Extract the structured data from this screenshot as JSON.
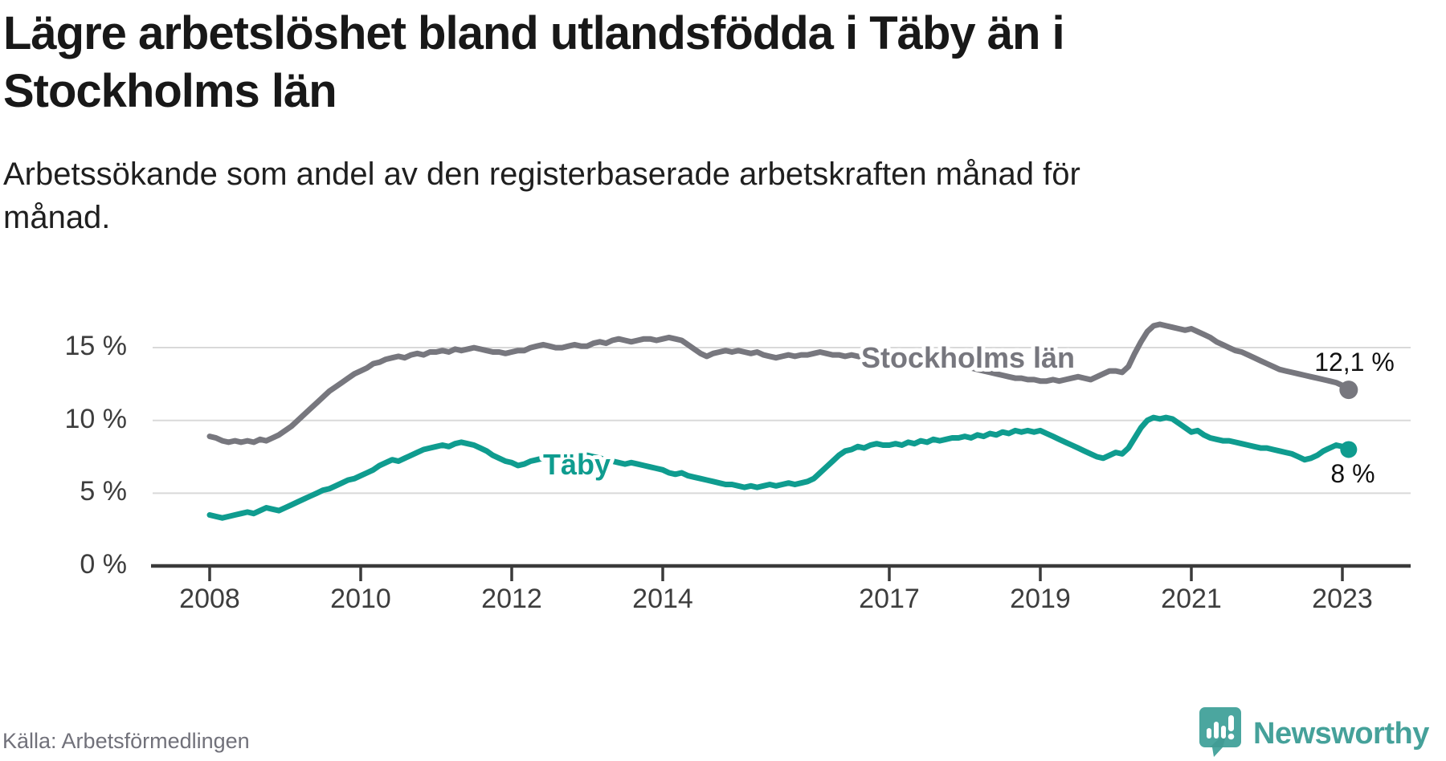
{
  "header": {
    "title_line1": "Lägre arbetslöshet bland utlandsfödda i Täby än i",
    "title_line2": "Stockholms län",
    "subtitle_line1": "Arbetssökande som andel av den registerbaserade arbetskraften månad för",
    "subtitle_line2": "månad."
  },
  "footer": {
    "source": "Källa: Arbetsförmedlingen",
    "brand": "Newsworthy"
  },
  "colors": {
    "stockholm_line": "#77777e",
    "taby_line": "#0f9c8f",
    "axis": "#3a3a3a",
    "gridline": "#d9d9d9",
    "end_label_text": "#111111",
    "brand_teal": "#45a19a",
    "halo": "#ffffff"
  },
  "chart_data": {
    "type": "line",
    "title": "Lägre arbetslöshet bland utlandsfödda i Täby än i Stockholms län",
    "subtitle": "Arbetssökande som andel av den registerbaserade arbetskraften månad för månad.",
    "unit": "%",
    "frequency": "monthly",
    "start": "2008-01",
    "end": "2023-02",
    "ylim": [
      0,
      17.5
    ],
    "grid": "horizontal",
    "legend_position": "inline-labels",
    "y_ticks": [
      {
        "value": 0,
        "label": "0 %"
      },
      {
        "value": 5,
        "label": "5 %"
      },
      {
        "value": 10,
        "label": "10 %"
      },
      {
        "value": 15,
        "label": "15 %"
      }
    ],
    "x_ticks": [
      {
        "year": 2008,
        "label": "2008"
      },
      {
        "year": 2010,
        "label": "2010"
      },
      {
        "year": 2012,
        "label": "2012"
      },
      {
        "year": 2014,
        "label": "2014"
      },
      {
        "year": 2017,
        "label": "2017"
      },
      {
        "year": 2019,
        "label": "2019"
      },
      {
        "year": 2021,
        "label": "2021"
      },
      {
        "year": 2023,
        "label": "2023"
      }
    ],
    "series": [
      {
        "name": "Stockholms län",
        "color": "#77777e",
        "end_label": "12,1 %",
        "end_value": 12.1,
        "values": [
          8.9,
          8.8,
          8.6,
          8.5,
          8.6,
          8.5,
          8.6,
          8.5,
          8.7,
          8.6,
          8.8,
          9.0,
          9.3,
          9.6,
          10.0,
          10.4,
          10.8,
          11.2,
          11.6,
          12.0,
          12.3,
          12.6,
          12.9,
          13.2,
          13.4,
          13.6,
          13.9,
          14.0,
          14.2,
          14.3,
          14.4,
          14.3,
          14.5,
          14.6,
          14.5,
          14.7,
          14.7,
          14.8,
          14.7,
          14.9,
          14.8,
          14.9,
          15.0,
          14.9,
          14.8,
          14.7,
          14.7,
          14.6,
          14.7,
          14.8,
          14.8,
          15.0,
          15.1,
          15.2,
          15.1,
          15.0,
          15.0,
          15.1,
          15.2,
          15.1,
          15.1,
          15.3,
          15.4,
          15.3,
          15.5,
          15.6,
          15.5,
          15.4,
          15.5,
          15.6,
          15.6,
          15.5,
          15.6,
          15.7,
          15.6,
          15.5,
          15.2,
          14.9,
          14.6,
          14.4,
          14.6,
          14.7,
          14.8,
          14.7,
          14.8,
          14.7,
          14.6,
          14.7,
          14.5,
          14.4,
          14.3,
          14.4,
          14.5,
          14.4,
          14.5,
          14.5,
          14.6,
          14.7,
          14.6,
          14.5,
          14.5,
          14.4,
          14.5,
          14.4,
          14.3,
          14.4,
          14.3,
          14.4,
          14.4,
          14.3,
          14.2,
          14.3,
          14.2,
          14.1,
          14.1,
          14.0,
          14.0,
          13.9,
          13.8,
          13.8,
          13.7,
          13.6,
          13.5,
          13.4,
          13.3,
          13.2,
          13.1,
          13.0,
          12.9,
          12.9,
          12.8,
          12.8,
          12.7,
          12.7,
          12.8,
          12.7,
          12.8,
          12.9,
          13.0,
          12.9,
          12.8,
          13.0,
          13.2,
          13.4,
          13.4,
          13.3,
          13.7,
          14.6,
          15.4,
          16.1,
          16.5,
          16.6,
          16.5,
          16.4,
          16.3,
          16.2,
          16.3,
          16.1,
          15.9,
          15.7,
          15.4,
          15.2,
          15.0,
          14.8,
          14.7,
          14.5,
          14.3,
          14.1,
          13.9,
          13.7,
          13.5,
          13.4,
          13.3,
          13.2,
          13.1,
          13.0,
          12.9,
          12.8,
          12.7,
          12.6,
          12.4,
          12.1
        ]
      },
      {
        "name": "Täby",
        "color": "#0f9c8f",
        "end_label": "8 %",
        "end_value": 8.0,
        "values": [
          3.5,
          3.4,
          3.3,
          3.4,
          3.5,
          3.6,
          3.7,
          3.6,
          3.8,
          4.0,
          3.9,
          3.8,
          4.0,
          4.2,
          4.4,
          4.6,
          4.8,
          5.0,
          5.2,
          5.3,
          5.5,
          5.7,
          5.9,
          6.0,
          6.2,
          6.4,
          6.6,
          6.9,
          7.1,
          7.3,
          7.2,
          7.4,
          7.6,
          7.8,
          8.0,
          8.1,
          8.2,
          8.3,
          8.2,
          8.4,
          8.5,
          8.4,
          8.3,
          8.1,
          7.9,
          7.6,
          7.4,
          7.2,
          7.1,
          6.9,
          7.0,
          7.2,
          7.3,
          7.4,
          7.3,
          7.5,
          7.6,
          7.5,
          7.4,
          7.5,
          7.6,
          7.5,
          7.4,
          7.3,
          7.2,
          7.1,
          7.0,
          7.1,
          7.0,
          6.9,
          6.8,
          6.7,
          6.6,
          6.4,
          6.3,
          6.4,
          6.2,
          6.1,
          6.0,
          5.9,
          5.8,
          5.7,
          5.6,
          5.6,
          5.5,
          5.4,
          5.5,
          5.4,
          5.5,
          5.6,
          5.5,
          5.6,
          5.7,
          5.6,
          5.7,
          5.8,
          6.0,
          6.4,
          6.8,
          7.2,
          7.6,
          7.9,
          8.0,
          8.2,
          8.1,
          8.3,
          8.4,
          8.3,
          8.3,
          8.4,
          8.3,
          8.5,
          8.4,
          8.6,
          8.5,
          8.7,
          8.6,
          8.7,
          8.8,
          8.8,
          8.9,
          8.8,
          9.0,
          8.9,
          9.1,
          9.0,
          9.2,
          9.1,
          9.3,
          9.2,
          9.3,
          9.2,
          9.3,
          9.1,
          8.9,
          8.7,
          8.5,
          8.3,
          8.1,
          7.9,
          7.7,
          7.5,
          7.4,
          7.6,
          7.8,
          7.7,
          8.1,
          8.8,
          9.5,
          10.0,
          10.2,
          10.1,
          10.2,
          10.1,
          9.8,
          9.5,
          9.2,
          9.3,
          9.0,
          8.8,
          8.7,
          8.6,
          8.6,
          8.5,
          8.4,
          8.3,
          8.2,
          8.1,
          8.1,
          8.0,
          7.9,
          7.8,
          7.7,
          7.5,
          7.3,
          7.4,
          7.6,
          7.9,
          8.1,
          8.3,
          8.2,
          8.0
        ]
      }
    ]
  }
}
